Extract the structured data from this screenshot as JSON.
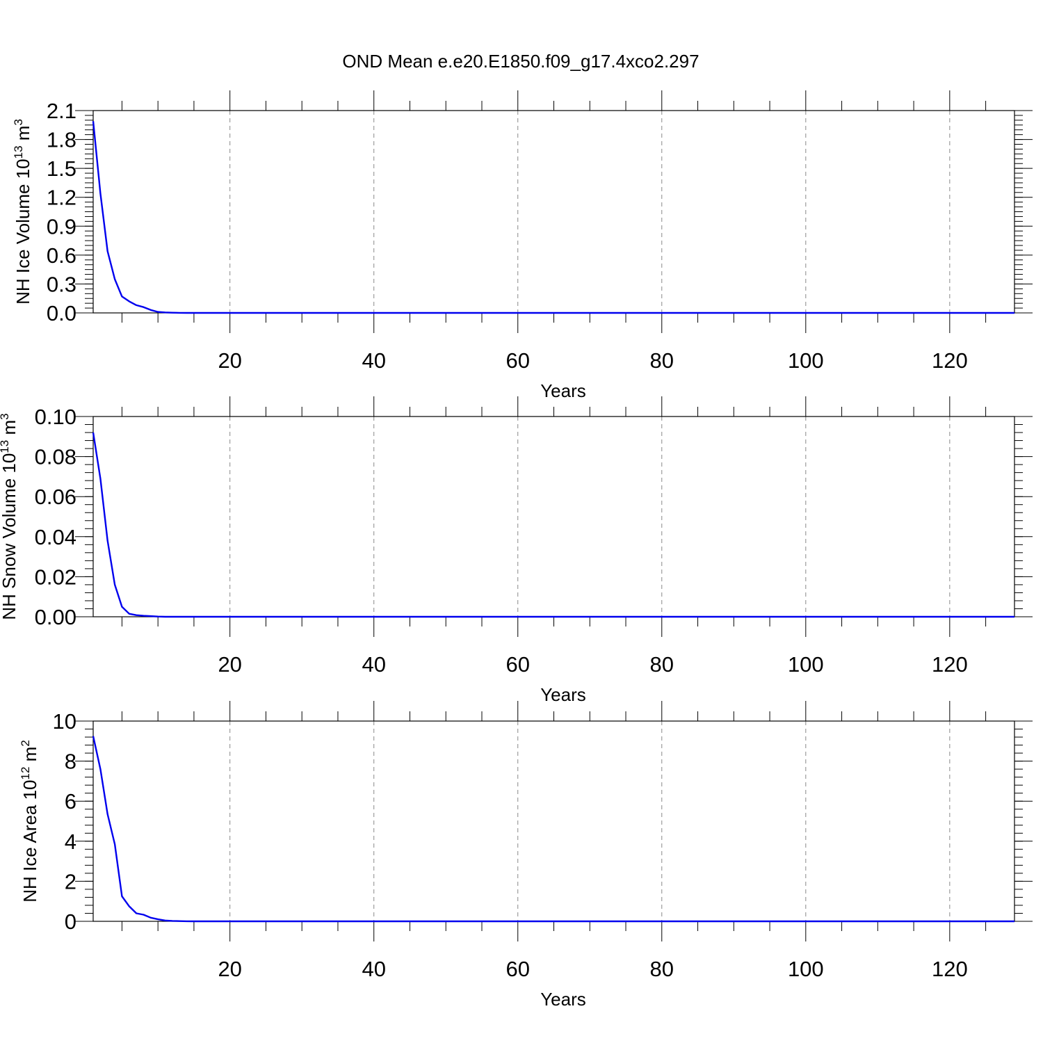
{
  "title": "OND Mean e.e20.E1850.f09_g17.4xco2.297",
  "colors": {
    "line": "#0000ee",
    "frame": "#000000",
    "grid": "#888888"
  },
  "chart_data": [
    {
      "type": "line",
      "xlabel": "Years",
      "ylabel": {
        "text": "NH Ice Volume 10",
        "exp": "13",
        "unit": " m",
        "unit_exp": "3"
      },
      "xlim": [
        1,
        129
      ],
      "ylim": [
        0,
        2.1
      ],
      "grid": "x dashed",
      "xticks": [
        20,
        40,
        60,
        80,
        100,
        120
      ],
      "xtick_labels": [
        "20",
        "40",
        "60",
        "80",
        "100",
        "120"
      ],
      "yticks": [
        0,
        0.3,
        0.6,
        0.9,
        1.2,
        1.5,
        1.8,
        2.1
      ],
      "ytick_labels": [
        "0.0",
        "0.3",
        "0.6",
        "0.9",
        "1.2",
        "1.5",
        "1.8",
        "2.1"
      ],
      "yminor": 0.05,
      "series": [
        {
          "x": [
            1,
            2,
            3,
            4,
            5,
            6,
            7,
            8,
            9,
            10,
            11,
            12,
            13,
            14,
            15,
            129
          ],
          "values": [
            1.99,
            1.24,
            0.64,
            0.35,
            0.17,
            0.12,
            0.08,
            0.06,
            0.03,
            0.01,
            0.005,
            0.002,
            0.001,
            0.0,
            0.0,
            0.0
          ]
        }
      ]
    },
    {
      "type": "line",
      "xlabel": "Years",
      "ylabel": {
        "text": "NH Snow Volume 10",
        "exp": "13",
        "unit": " m",
        "unit_exp": "3"
      },
      "xlim": [
        1,
        129
      ],
      "ylim": [
        0,
        0.1
      ],
      "grid": "x dashed",
      "xticks": [
        20,
        40,
        60,
        80,
        100,
        120
      ],
      "xtick_labels": [
        "20",
        "40",
        "60",
        "80",
        "100",
        "120"
      ],
      "yticks": [
        0,
        0.02,
        0.04,
        0.06,
        0.08,
        0.1
      ],
      "ytick_labels": [
        "0.00",
        "0.02",
        "0.04",
        "0.06",
        "0.08",
        "0.10"
      ],
      "yminor": 0.004,
      "series": [
        {
          "x": [
            1,
            2,
            3,
            4,
            5,
            6,
            7,
            8,
            9,
            10,
            11,
            12,
            13,
            129
          ],
          "values": [
            0.092,
            0.069,
            0.038,
            0.016,
            0.005,
            0.0015,
            0.0008,
            0.0005,
            0.0003,
            0.0001,
            0.0,
            0.0,
            0.0,
            0.0
          ]
        }
      ]
    },
    {
      "type": "line",
      "xlabel": "Years",
      "ylabel": {
        "text": "NH Ice Area 10",
        "exp": "12",
        "unit": " m",
        "unit_exp": "2"
      },
      "xlim": [
        1,
        129
      ],
      "ylim": [
        0,
        10
      ],
      "grid": "x dashed",
      "xticks": [
        20,
        40,
        60,
        80,
        100,
        120
      ],
      "xtick_labels": [
        "20",
        "40",
        "60",
        "80",
        "100",
        "120"
      ],
      "yticks": [
        0,
        2,
        4,
        6,
        8,
        10
      ],
      "ytick_labels": [
        "0",
        "2",
        "4",
        "6",
        "8",
        "10"
      ],
      "yminor": 0.4,
      "series": [
        {
          "x": [
            1,
            2,
            3,
            4,
            5,
            6,
            7,
            8,
            9,
            10,
            11,
            12,
            13,
            14,
            15,
            16,
            129
          ],
          "values": [
            9.25,
            7.6,
            5.35,
            3.85,
            1.25,
            0.75,
            0.4,
            0.33,
            0.18,
            0.1,
            0.04,
            0.02,
            0.01,
            0.005,
            0.0,
            0.0,
            0.0
          ]
        }
      ]
    }
  ]
}
